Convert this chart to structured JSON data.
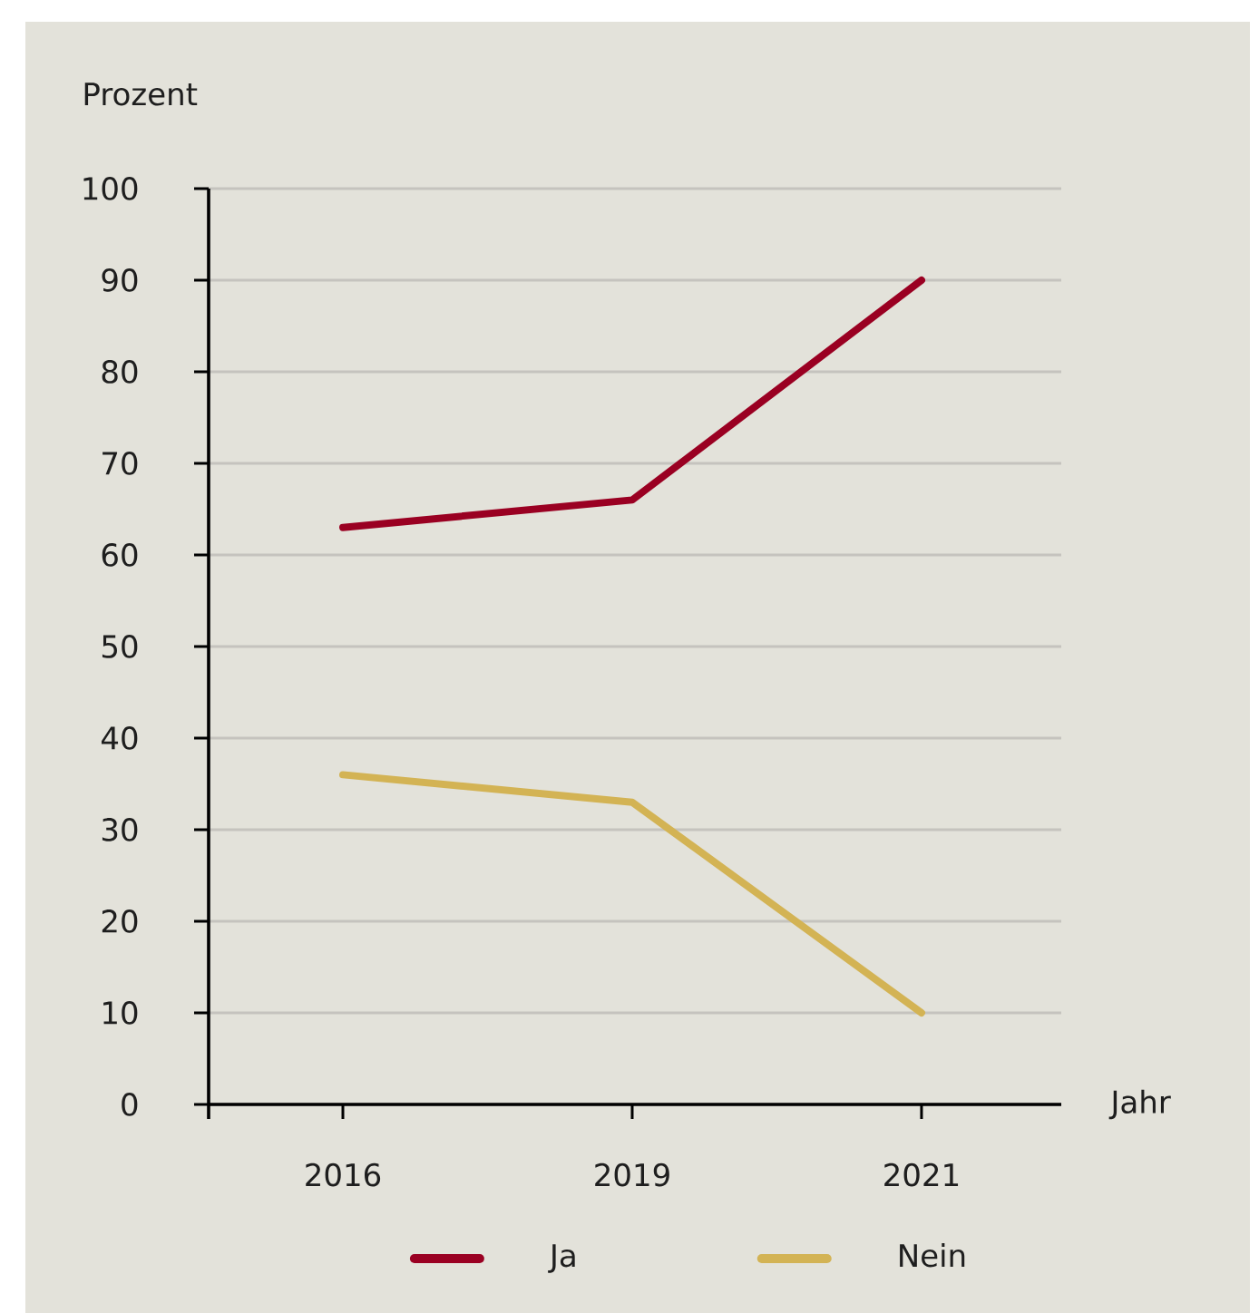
{
  "chart_data": {
    "type": "line",
    "xlabel": "Jahr",
    "ylabel": "Prozent",
    "categories": [
      "2016",
      "2019",
      "2021"
    ],
    "series": [
      {
        "name": "Ja",
        "color": "#9a0022",
        "values": [
          63,
          66,
          90
        ]
      },
      {
        "name": "Nein",
        "color": "#d3b354",
        "values": [
          36,
          33,
          10
        ]
      }
    ],
    "ylim": [
      0,
      100
    ],
    "yticks": [
      0,
      10,
      20,
      30,
      40,
      50,
      60,
      70,
      80,
      90,
      100
    ],
    "grid": "y",
    "legend": "bottom"
  }
}
